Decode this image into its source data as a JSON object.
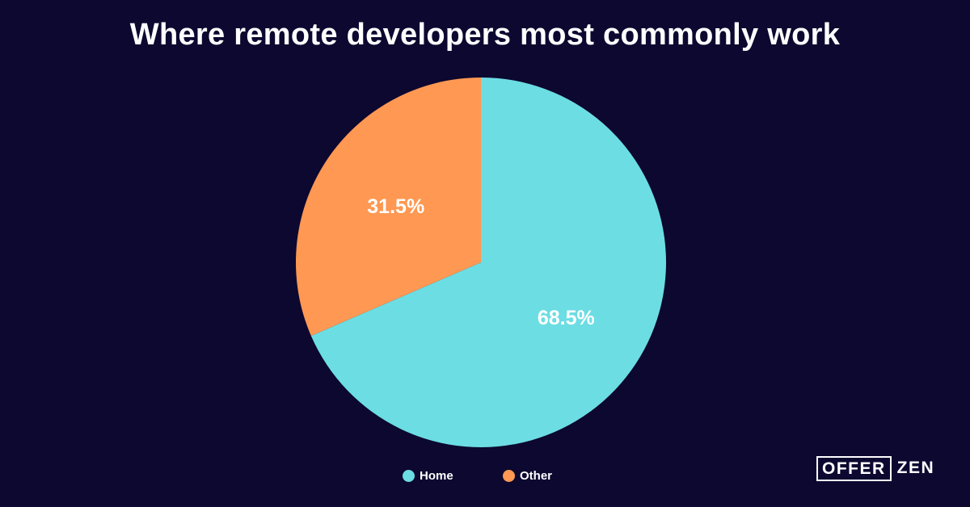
{
  "chart_data": {
    "type": "pie",
    "title": "Where remote developers most commonly work",
    "categories": [
      "Home",
      "Other"
    ],
    "values": [
      68.5,
      31.5
    ],
    "labels": [
      "68.5%",
      "31.5%"
    ],
    "colors": [
      "#6cdde3",
      "#fe9852"
    ],
    "legend": "bottom-center",
    "background": "#0c0830"
  },
  "legend": {
    "items": [
      {
        "label": "Home",
        "color": "#6cdde3"
      },
      {
        "label": "Other",
        "color": "#fe9852"
      }
    ]
  },
  "brand": {
    "boxed_text": "OFFER",
    "text": "ZEN"
  }
}
